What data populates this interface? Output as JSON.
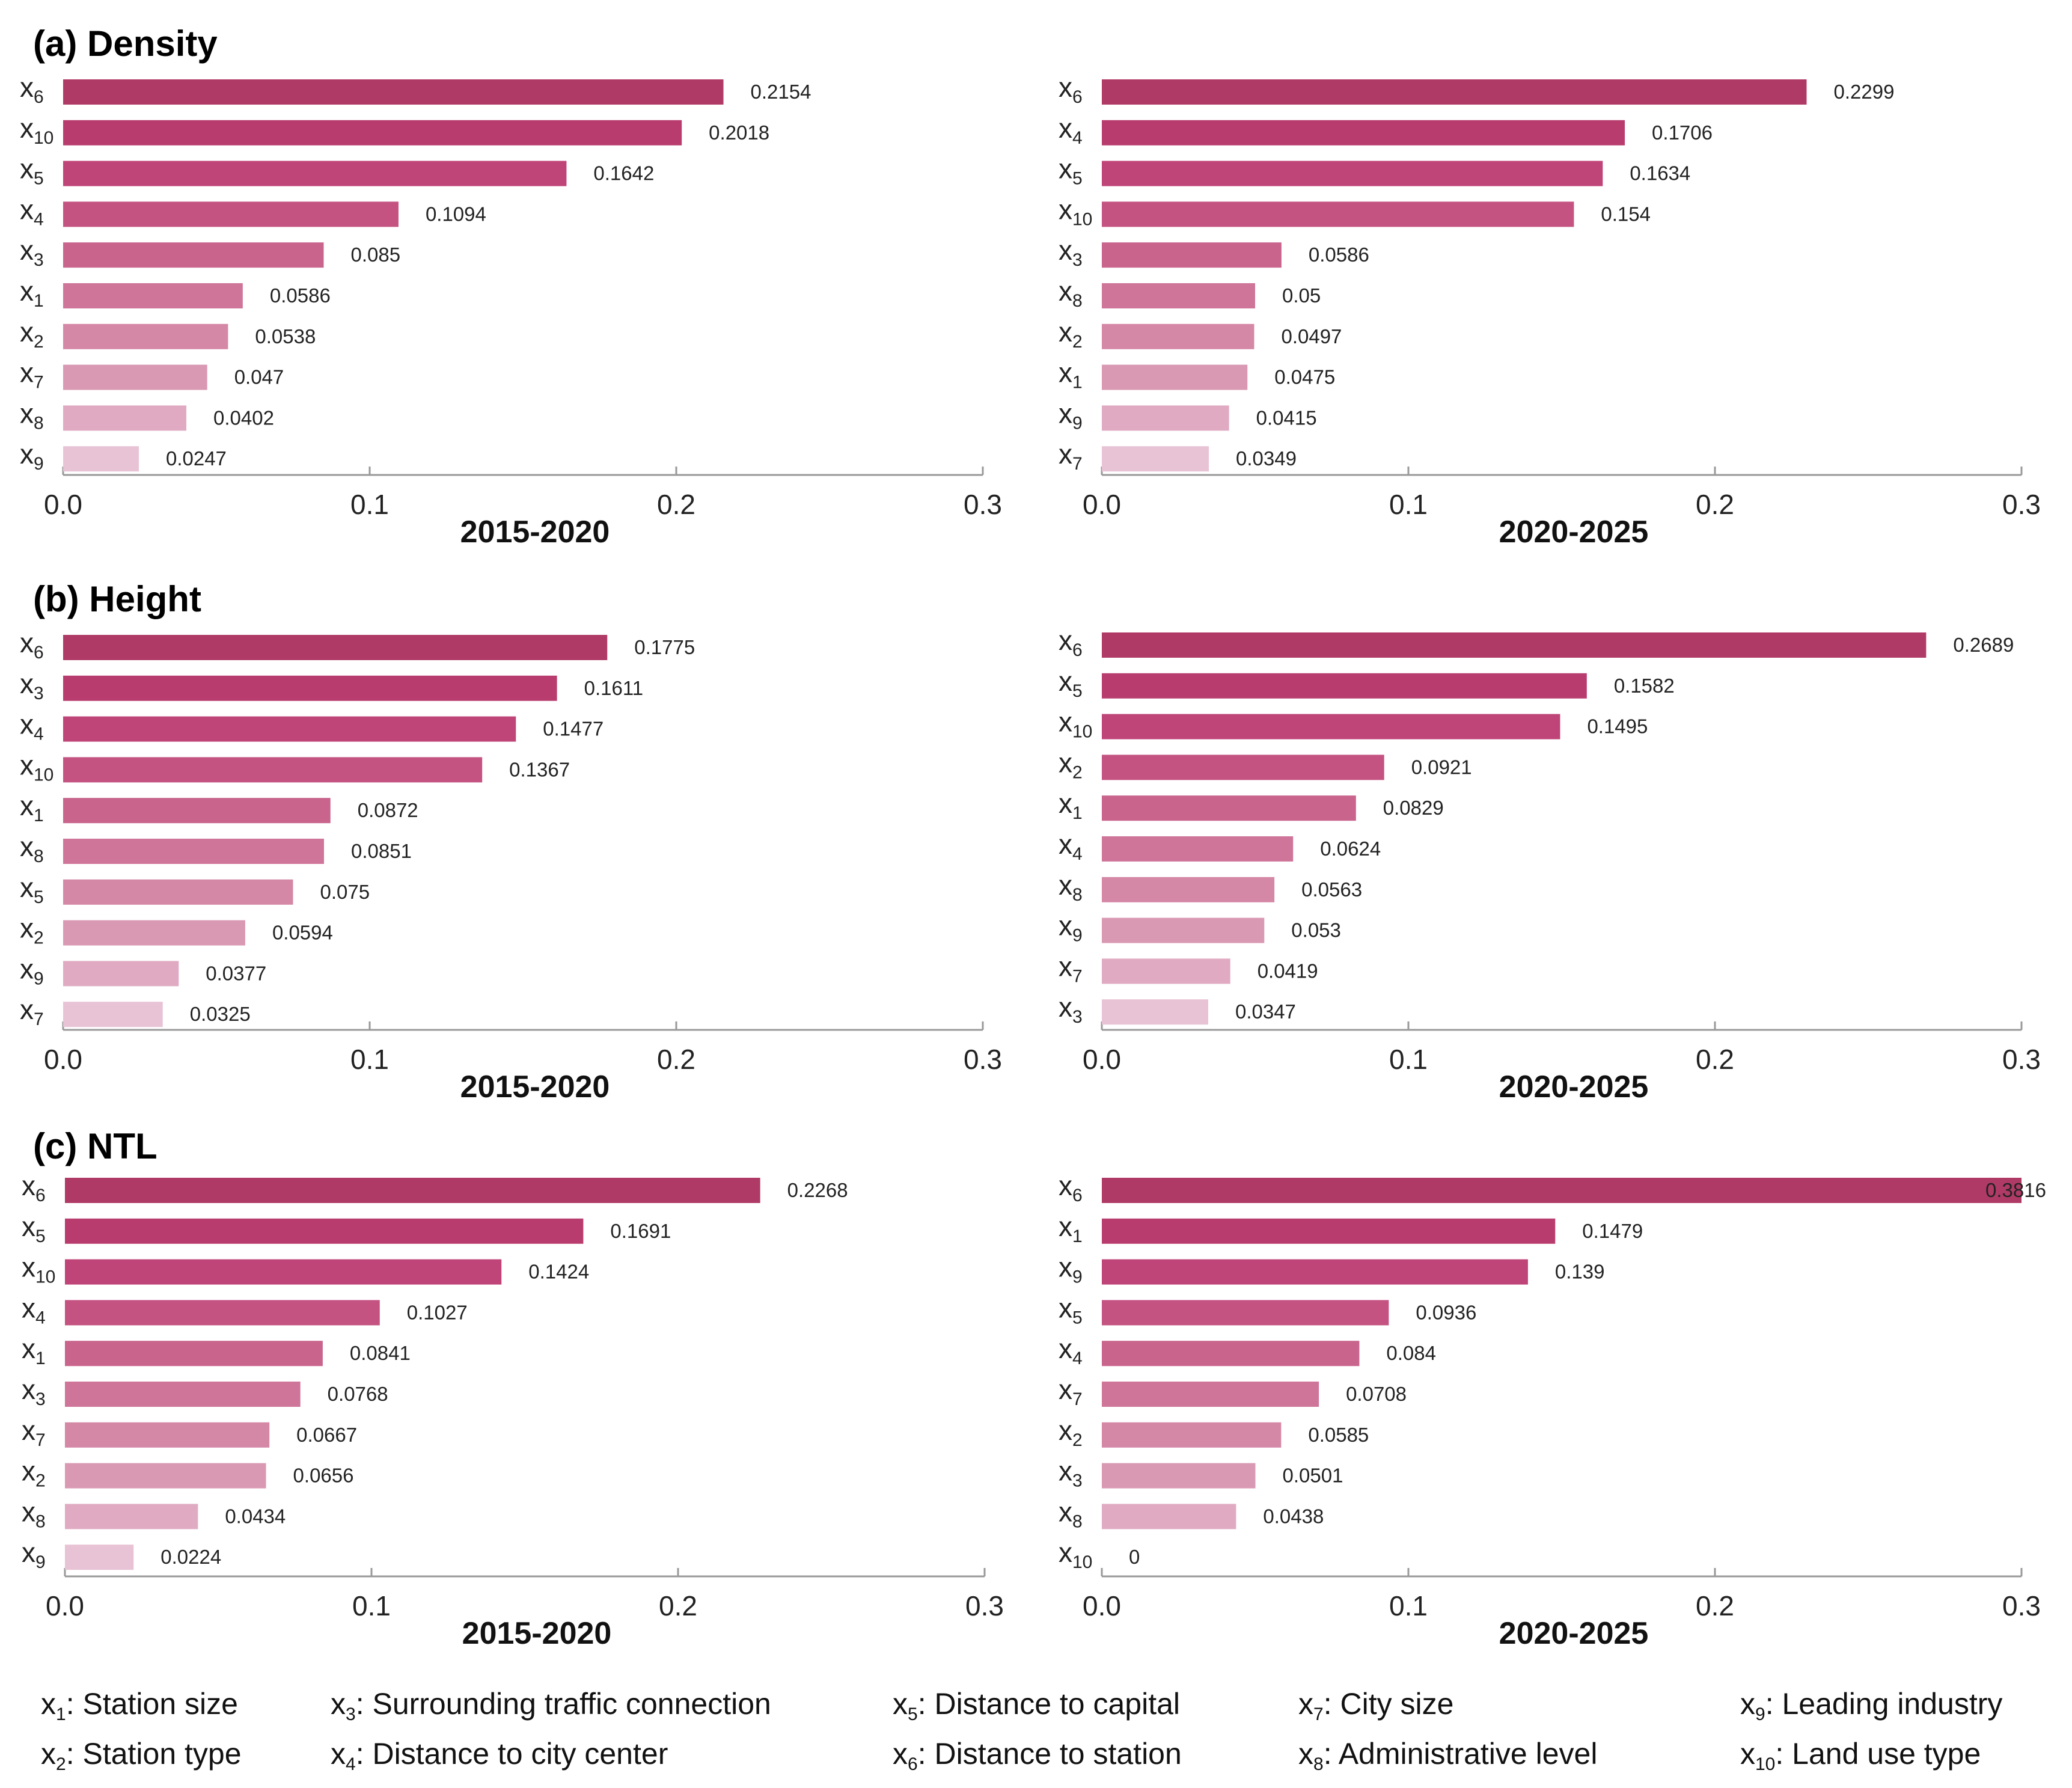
{
  "colors": {
    "ramp": [
      "#b03a66",
      "#b83d6e",
      "#bf4478",
      "#c45382",
      "#c9648d",
      "#cf7599",
      "#d587a6",
      "#da99b3",
      "#e0abc2",
      "#e8c3d5"
    ],
    "axis": "#999999"
  },
  "sections": [
    {
      "label": "(a) Density"
    },
    {
      "label": "(b) Height"
    },
    {
      "label": "(c) NTL"
    }
  ],
  "chart_data": [
    {
      "type": "bar",
      "orientation": "horizontal",
      "section": "(a) Density",
      "title": "2015-2020",
      "categories": [
        "x6",
        "x10",
        "x5",
        "x4",
        "x3",
        "x1",
        "x2",
        "x7",
        "x8",
        "x9"
      ],
      "values": [
        0.2154,
        0.2018,
        0.1642,
        0.1094,
        0.085,
        0.0586,
        0.0538,
        0.047,
        0.0402,
        0.0247
      ],
      "value_labels": [
        "0.2154",
        "0.2018",
        "0.1642",
        "0.1094",
        "0.085",
        "0.0586",
        "0.0538",
        "0.047",
        "0.0402",
        "0.0247"
      ],
      "xlim": [
        0,
        0.3
      ],
      "ticks": [
        "0.0",
        "0.1",
        "0.2",
        "0.3"
      ]
    },
    {
      "type": "bar",
      "orientation": "horizontal",
      "section": "(a) Density",
      "title": "2020-2025",
      "categories": [
        "x6",
        "x4",
        "x5",
        "x10",
        "x3",
        "x8",
        "x2",
        "x1",
        "x9",
        "x7"
      ],
      "values": [
        0.2299,
        0.1706,
        0.1634,
        0.154,
        0.0586,
        0.05,
        0.0497,
        0.0475,
        0.0415,
        0.0349
      ],
      "value_labels": [
        "0.2299",
        "0.1706",
        "0.1634",
        "0.154",
        "0.0586",
        "0.05",
        "0.0497",
        "0.0475",
        "0.0415",
        "0.0349"
      ],
      "xlim": [
        0,
        0.3
      ],
      "ticks": [
        "0.0",
        "0.1",
        "0.2",
        "0.3"
      ]
    },
    {
      "type": "bar",
      "orientation": "horizontal",
      "section": "(b) Height",
      "title": "2015-2020",
      "categories": [
        "x6",
        "x3",
        "x4",
        "x10",
        "x1",
        "x8",
        "x5",
        "x2",
        "x9",
        "x7"
      ],
      "values": [
        0.1775,
        0.1611,
        0.1477,
        0.1367,
        0.0872,
        0.0851,
        0.075,
        0.0594,
        0.0377,
        0.0325
      ],
      "value_labels": [
        "0.1775",
        "0.1611",
        "0.1477",
        "0.1367",
        "0.0872",
        "0.0851",
        "0.075",
        "0.0594",
        "0.0377",
        "0.0325"
      ],
      "xlim": [
        0,
        0.3
      ],
      "ticks": [
        "0.0",
        "0.1",
        "0.2",
        "0.3"
      ]
    },
    {
      "type": "bar",
      "orientation": "horizontal",
      "section": "(b) Height",
      "title": "2020-2025",
      "categories": [
        "x6",
        "x5",
        "x10",
        "x2",
        "x1",
        "x4",
        "x8",
        "x9",
        "x7",
        "x3"
      ],
      "values": [
        0.2689,
        0.1582,
        0.1495,
        0.0921,
        0.0829,
        0.0624,
        0.0563,
        0.053,
        0.0419,
        0.0347
      ],
      "value_labels": [
        "0.2689",
        "0.1582",
        "0.1495",
        "0.0921",
        "0.0829",
        "0.0624",
        "0.0563",
        "0.053",
        "0.0419",
        "0.0347"
      ],
      "xlim": [
        0,
        0.3
      ],
      "ticks": [
        "0.0",
        "0.1",
        "0.2",
        "0.3"
      ]
    },
    {
      "type": "bar",
      "orientation": "horizontal",
      "section": "(c) NTL",
      "title": "2015-2020",
      "categories": [
        "x6",
        "x5",
        "x10",
        "x4",
        "x1",
        "x3",
        "x7",
        "x2",
        "x8",
        "x9"
      ],
      "values": [
        0.2268,
        0.1691,
        0.1424,
        0.1027,
        0.0841,
        0.0768,
        0.0667,
        0.0656,
        0.0434,
        0.0224
      ],
      "value_labels": [
        "0.2268",
        "0.1691",
        "0.1424",
        "0.1027",
        "0.0841",
        "0.0768",
        "0.0667",
        "0.0656",
        "0.0434",
        "0.0224"
      ],
      "xlim": [
        0,
        0.3
      ],
      "ticks": [
        "0.0",
        "0.1",
        "0.2",
        "0.3"
      ]
    },
    {
      "type": "bar",
      "orientation": "horizontal",
      "section": "(c) NTL",
      "title": "2020-2025",
      "categories": [
        "x6",
        "x1",
        "x9",
        "x5",
        "x4",
        "x7",
        "x2",
        "x3",
        "x8",
        "x10"
      ],
      "values": [
        0.3816,
        0.1479,
        0.139,
        0.0936,
        0.084,
        0.0708,
        0.0585,
        0.0501,
        0.0438,
        0
      ],
      "value_labels": [
        "0.3816",
        "0.1479",
        "0.139",
        "0.0936",
        "0.084",
        "0.0708",
        "0.0585",
        "0.0501",
        "0.0438",
        "0"
      ],
      "xlim": [
        0,
        0.3
      ],
      "ticks": [
        "0.0",
        "0.1",
        "0.2",
        "0.3"
      ]
    }
  ],
  "legend": [
    {
      "var": "x",
      "sub": "1",
      "text": ": Station size"
    },
    {
      "var": "x",
      "sub": "2",
      "text": ": Station type"
    },
    {
      "var": "x",
      "sub": "3",
      "text": ": Surrounding traffic connection"
    },
    {
      "var": "x",
      "sub": "4",
      "text": ": Distance to city center"
    },
    {
      "var": "x",
      "sub": "5",
      "text": ": Distance to capital"
    },
    {
      "var": "x",
      "sub": "6",
      "text": ": Distance to station"
    },
    {
      "var": "x",
      "sub": "7",
      "text": ": City size"
    },
    {
      "var": "x",
      "sub": "8",
      "text": ": Administrative level"
    },
    {
      "var": "x",
      "sub": "9",
      "text": ":  Leading industry"
    },
    {
      "var": "x",
      "sub": "10",
      "text": ": Land use type"
    }
  ]
}
